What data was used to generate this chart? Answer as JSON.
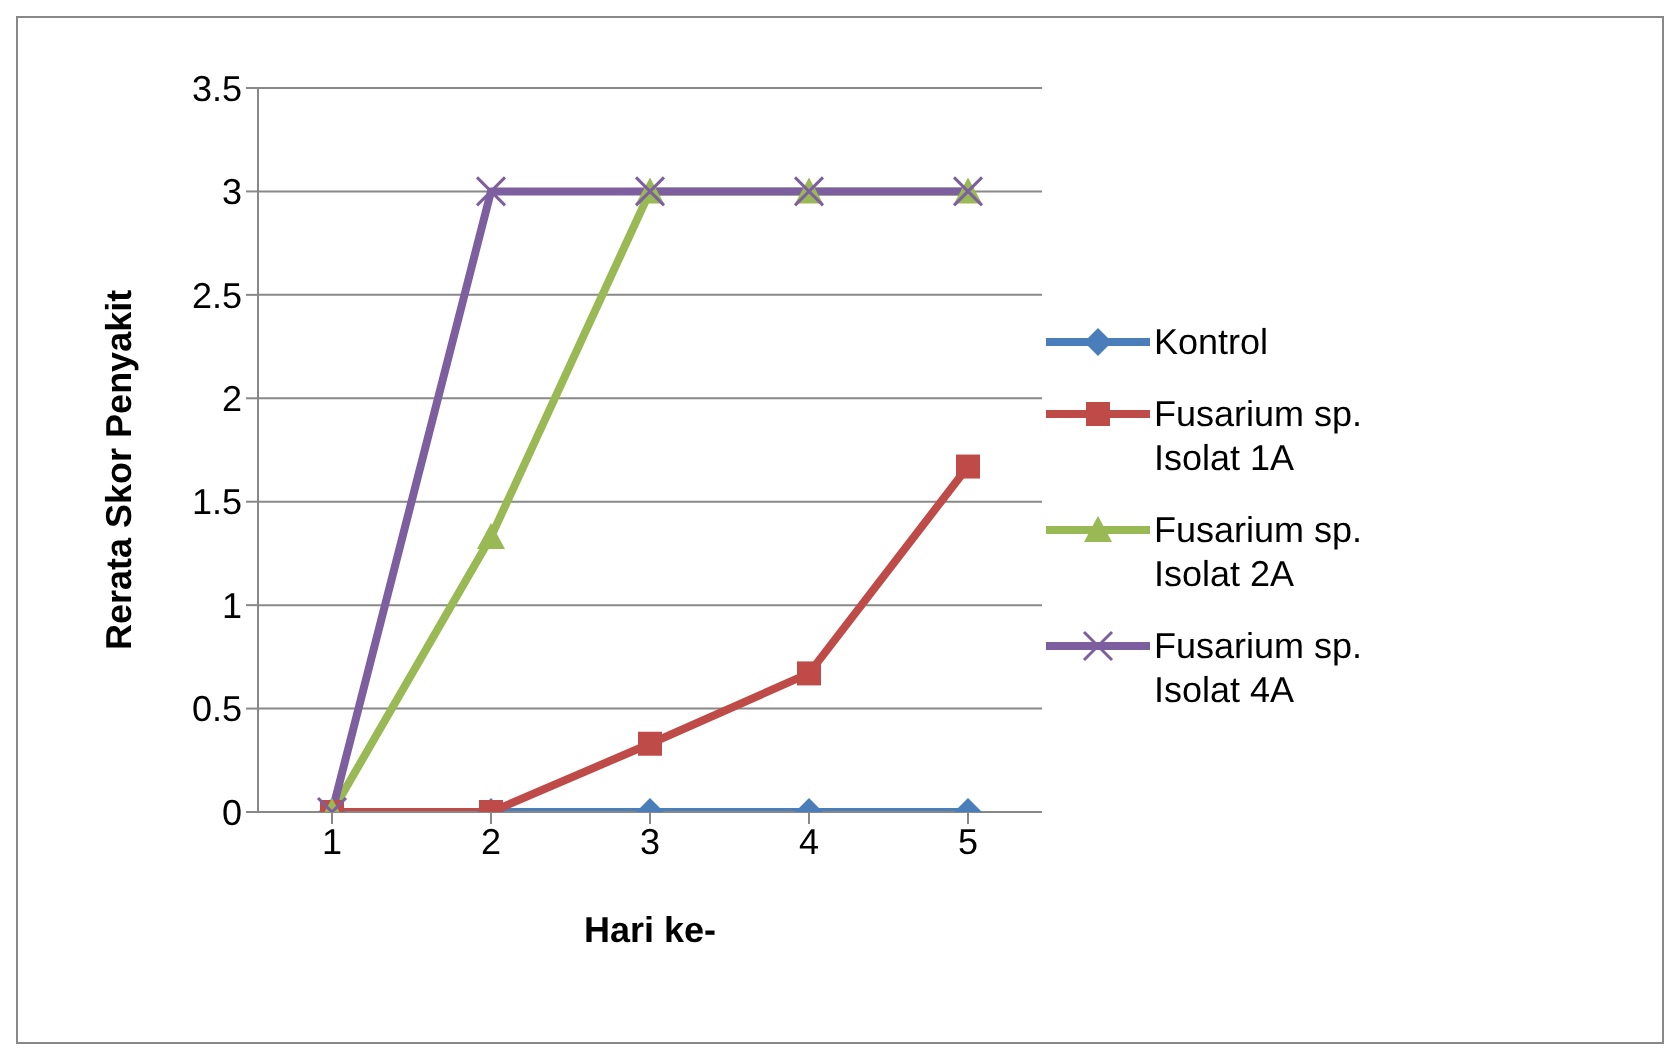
{
  "chart_data": {
    "type": "line",
    "xlabel": "Hari ke-",
    "ylabel": "Rerata Skor Penyakit",
    "categories": [
      "1",
      "2",
      "3",
      "4",
      "5"
    ],
    "series": [
      {
        "name": "Kontrol",
        "color": "#4a7ebb",
        "marker": "diamond",
        "values": [
          0,
          0,
          0,
          0,
          0
        ]
      },
      {
        "name": "Fusarium sp. Isolat 1A",
        "color": "#be4b48",
        "marker": "square",
        "values": [
          0,
          0,
          0.33,
          0.67,
          1.67
        ]
      },
      {
        "name": "Fusarium sp. Isolat 2A",
        "color": "#98b954",
        "marker": "triangle",
        "values": [
          0,
          1.33,
          3,
          3,
          3
        ]
      },
      {
        "name": "Fusarium sp. Isolat 4A",
        "color": "#7d5fa0",
        "marker": "cross",
        "values": [
          0,
          3,
          3,
          3,
          3
        ]
      }
    ],
    "ylim": [
      0,
      3.5
    ],
    "yticks": [
      0,
      0.5,
      1,
      1.5,
      2,
      2.5,
      3,
      3.5
    ],
    "grid": "y",
    "legend": "right"
  }
}
